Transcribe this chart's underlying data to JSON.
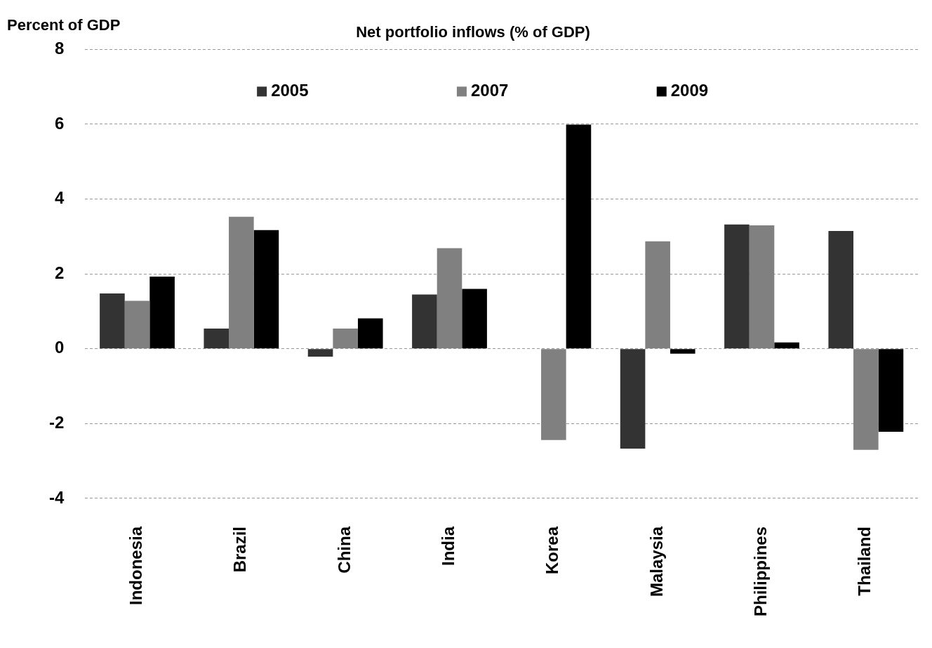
{
  "chart_data": {
    "type": "bar",
    "title": "Net portfolio inflows (% of GDP)",
    "ylabel": "Percent of GDP",
    "categories": [
      "Indonesia",
      "Brazil",
      "China",
      "India",
      "Korea",
      "Malaysia",
      "Philippines",
      "Thailand"
    ],
    "series": [
      {
        "name": "2005",
        "color": "#333333",
        "values": [
          1.48,
          0.54,
          -0.21,
          1.45,
          0,
          -2.67,
          3.32,
          3.15
        ]
      },
      {
        "name": "2007",
        "color": "#808080",
        "values": [
          1.28,
          3.53,
          0.54,
          2.69,
          -2.44,
          2.87,
          3.3,
          -2.7
        ]
      },
      {
        "name": "2009",
        "color": "#000000",
        "values": [
          1.93,
          3.17,
          0.81,
          1.6,
          5.99,
          -0.13,
          0.17,
          -2.22
        ]
      }
    ],
    "ylim": [
      -4,
      8
    ],
    "yticks": [
      -4,
      -2,
      0,
      2,
      4,
      6,
      8
    ],
    "grid": "y",
    "legend": "top"
  }
}
